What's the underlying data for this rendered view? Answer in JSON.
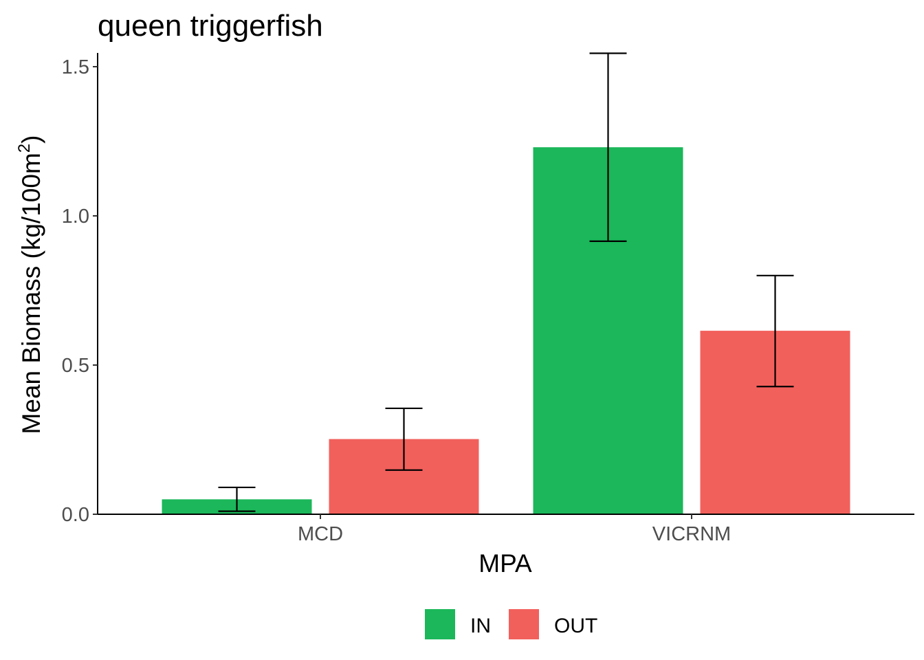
{
  "chart_data": {
    "type": "bar",
    "title": "queen triggerfish",
    "xlabel": "MPA",
    "ylabel": "Mean Biomass (kg/100m",
    "ylabel_superscript": "2",
    "ylabel_suffix": ")",
    "categories": [
      "MCD",
      "VICRNM"
    ],
    "series": [
      {
        "name": "IN",
        "color": "#1bb75a",
        "values": [
          0.05,
          1.23
        ],
        "error_low": [
          0.01,
          0.915
        ],
        "error_high": [
          0.09,
          1.545
        ]
      },
      {
        "name": "OUT",
        "color": "#f2605c",
        "values": [
          0.252,
          0.615
        ],
        "error_low": [
          0.148,
          0.428
        ],
        "error_high": [
          0.355,
          0.8
        ]
      }
    ],
    "ylim": [
      0,
      1.55
    ],
    "yticks": [
      0.0,
      0.5,
      1.0,
      1.5
    ],
    "ytick_labels": [
      "0.0",
      "0.5",
      "1.0",
      "1.5"
    ],
    "grid": false,
    "legend_position": "bottom"
  }
}
